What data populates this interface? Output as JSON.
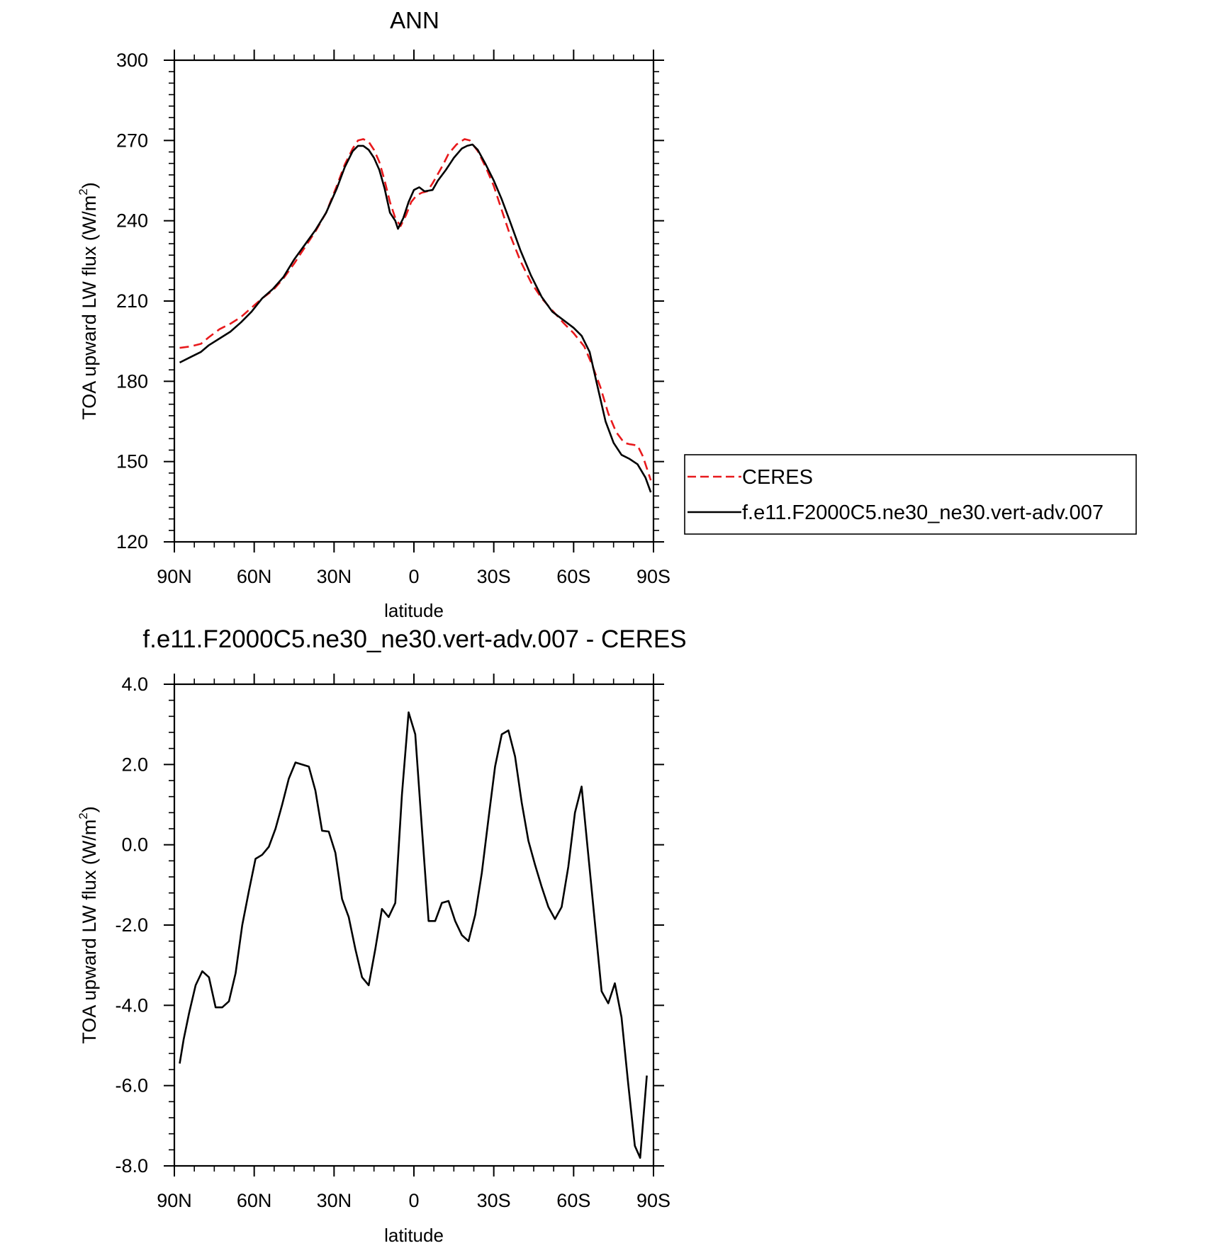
{
  "chart_data": [
    {
      "type": "line",
      "title": "ANN",
      "xlabel": "latitude",
      "ylabel": "TOA upward LW flux (W/m2)",
      "ylabel_main": "TOA upward LW flux (W/m",
      "ylabel_sup": "2",
      "ylabel_close": ")",
      "xlim": [
        90,
        -90
      ],
      "ylim": [
        120,
        300
      ],
      "x_ticks": [
        {
          "value": 90,
          "label": "90N"
        },
        {
          "value": 60,
          "label": "60N"
        },
        {
          "value": 30,
          "label": "30N"
        },
        {
          "value": 0,
          "label": "0"
        },
        {
          "value": -30,
          "label": "30S"
        },
        {
          "value": -60,
          "label": "60S"
        },
        {
          "value": -90,
          "label": "90S"
        }
      ],
      "y_ticks": [
        {
          "value": 120,
          "label": "120"
        },
        {
          "value": 150,
          "label": "150"
        },
        {
          "value": 180,
          "label": "180"
        },
        {
          "value": 210,
          "label": "210"
        },
        {
          "value": 240,
          "label": "240"
        },
        {
          "value": 270,
          "label": "270"
        },
        {
          "value": 300,
          "label": "300"
        }
      ],
      "grid": false,
      "legend": {
        "placement": "right"
      },
      "series": [
        {
          "name": "CERES",
          "color": "#e8191c",
          "dash": "dashed",
          "points": [
            [
              88,
              192.5
            ],
            [
              84,
              193
            ],
            [
              80,
              194
            ],
            [
              77,
              196.5
            ],
            [
              73,
              199.5
            ],
            [
              69,
              201.5
            ],
            [
              65,
              204
            ],
            [
              61,
              207.5
            ],
            [
              57,
              211
            ],
            [
              53,
              214
            ],
            [
              49,
              218.5
            ],
            [
              45,
              224
            ],
            [
              41,
              230
            ],
            [
              37,
              236
            ],
            [
              33,
              243
            ],
            [
              29,
              253
            ],
            [
              26,
              261
            ],
            [
              23,
              267
            ],
            [
              21,
              270
            ],
            [
              19,
              270.5
            ],
            [
              17,
              269.5
            ],
            [
              15,
              266.5
            ],
            [
              13,
              262
            ],
            [
              11,
              255
            ],
            [
              9,
              247
            ],
            [
              7,
              241
            ],
            [
              5,
              238
            ],
            [
              3,
              242
            ],
            [
              1,
              247
            ],
            [
              -1,
              249.5
            ],
            [
              -3,
              250.5
            ],
            [
              -5,
              251
            ],
            [
              -7,
              254
            ],
            [
              -9,
              257.5
            ],
            [
              -11,
              261
            ],
            [
              -13,
              265
            ],
            [
              -16,
              268.5
            ],
            [
              -19,
              270.5
            ],
            [
              -21,
              270
            ],
            [
              -24,
              266
            ],
            [
              -27,
              260
            ],
            [
              -30,
              253
            ],
            [
              -33,
              244
            ],
            [
              -36,
              235
            ],
            [
              -40,
              225
            ],
            [
              -44,
              217
            ],
            [
              -48,
              211
            ],
            [
              -52,
              206.5
            ],
            [
              -56,
              202
            ],
            [
              -60,
              198
            ],
            [
              -64,
              193
            ],
            [
              -67,
              186
            ],
            [
              -70,
              178
            ],
            [
              -73,
              168
            ],
            [
              -76,
              161
            ],
            [
              -79,
              157
            ],
            [
              -81,
              156.5
            ],
            [
              -84,
              156
            ],
            [
              -86,
              152
            ],
            [
              -88,
              146
            ],
            [
              -89,
              143
            ]
          ]
        },
        {
          "name": "f.e11.F2000C5.ne30_ne30.vert-adv.007",
          "color": "#000000",
          "dash": "solid",
          "points": [
            [
              88,
              187
            ],
            [
              84,
              189
            ],
            [
              80,
              191
            ],
            [
              77,
              193.5
            ],
            [
              73,
              196
            ],
            [
              69,
              198.5
            ],
            [
              65,
              202
            ],
            [
              61,
              206
            ],
            [
              57,
              211
            ],
            [
              53,
              214.5
            ],
            [
              49,
              219
            ],
            [
              45,
              225.5
            ],
            [
              41,
              231
            ],
            [
              37,
              236.5
            ],
            [
              33,
              243
            ],
            [
              29,
              252
            ],
            [
              26,
              260
            ],
            [
              23,
              266
            ],
            [
              21,
              268
            ],
            [
              19,
              268
            ],
            [
              17,
              266.5
            ],
            [
              15,
              263.5
            ],
            [
              13,
              259
            ],
            [
              11,
              252
            ],
            [
              9,
              243
            ],
            [
              7,
              240
            ],
            [
              6,
              237
            ],
            [
              4,
              241
            ],
            [
              2,
              247
            ],
            [
              0,
              251.5
            ],
            [
              -2,
              252.5
            ],
            [
              -4,
              251
            ],
            [
              -7,
              251.5
            ],
            [
              -9,
              255
            ],
            [
              -12,
              259
            ],
            [
              -15,
              263.5
            ],
            [
              -18,
              267
            ],
            [
              -20,
              268
            ],
            [
              -22,
              268.5
            ],
            [
              -24,
              266.5
            ],
            [
              -27,
              261
            ],
            [
              -30,
              255
            ],
            [
              -33,
              248
            ],
            [
              -36,
              240
            ],
            [
              -40,
              229
            ],
            [
              -44,
              219.5
            ],
            [
              -48,
              211.5
            ],
            [
              -52,
              206
            ],
            [
              -56,
              203
            ],
            [
              -60,
              200
            ],
            [
              -63,
              197
            ],
            [
              -66,
              191
            ],
            [
              -69,
              178
            ],
            [
              -72,
              165
            ],
            [
              -75,
              157
            ],
            [
              -78,
              152.5
            ],
            [
              -81,
              151
            ],
            [
              -84,
              149
            ],
            [
              -87,
              144
            ],
            [
              -89,
              138.5
            ]
          ]
        }
      ]
    },
    {
      "type": "line",
      "title": "f.e11.F2000C5.ne30_ne30.vert-adv.007 - CERES",
      "xlabel": "latitude",
      "ylabel": "TOA upward LW flux (W/m2)",
      "ylabel_main": "TOA upward LW flux (W/m",
      "ylabel_sup": "2",
      "ylabel_close": ")",
      "xlim": [
        90,
        -90
      ],
      "ylim": [
        -8,
        4
      ],
      "x_ticks": [
        {
          "value": 90,
          "label": "90N"
        },
        {
          "value": 60,
          "label": "60N"
        },
        {
          "value": 30,
          "label": "30N"
        },
        {
          "value": 0,
          "label": "0"
        },
        {
          "value": -30,
          "label": "30S"
        },
        {
          "value": -60,
          "label": "60S"
        },
        {
          "value": -90,
          "label": "90S"
        }
      ],
      "y_ticks": [
        {
          "value": -8,
          "label": "-8.0"
        },
        {
          "value": -6,
          "label": "-6.0"
        },
        {
          "value": -4,
          "label": "-4.0"
        },
        {
          "value": -2,
          "label": "-2.0"
        },
        {
          "value": 0,
          "label": "0.0"
        },
        {
          "value": 2,
          "label": "2.0"
        },
        {
          "value": 4,
          "label": "4.0"
        }
      ],
      "grid": false,
      "series": [
        {
          "color": "#000000",
          "dash": "solid",
          "points": [
            [
              88,
              -5.45
            ],
            [
              86.5,
              -4.85
            ],
            [
              84.5,
              -4.2
            ],
            [
              82,
              -3.5
            ],
            [
              79.5,
              -3.15
            ],
            [
              77,
              -3.3
            ],
            [
              74.5,
              -4.05
            ],
            [
              72,
              -4.05
            ],
            [
              69.5,
              -3.9
            ],
            [
              67,
              -3.2
            ],
            [
              64.5,
              -2.0
            ],
            [
              62,
              -1.15
            ],
            [
              59.5,
              -0.35
            ],
            [
              57,
              -0.25
            ],
            [
              54.5,
              -0.05
            ],
            [
              52,
              0.4
            ],
            [
              49.5,
              1.0
            ],
            [
              47,
              1.65
            ],
            [
              44.5,
              2.05
            ],
            [
              39.5,
              1.95
            ],
            [
              37,
              1.35
            ],
            [
              34.5,
              0.35
            ],
            [
              32,
              0.33
            ],
            [
              29.5,
              -0.2
            ],
            [
              27,
              -1.35
            ],
            [
              24.5,
              -1.8
            ],
            [
              22,
              -2.6
            ],
            [
              19.5,
              -3.3
            ],
            [
              17,
              -3.5
            ],
            [
              14.5,
              -2.6
            ],
            [
              12,
              -1.6
            ],
            [
              9.5,
              -1.8
            ],
            [
              7,
              -1.45
            ],
            [
              4.5,
              1.25
            ],
            [
              2,
              3.3
            ],
            [
              -0.5,
              2.75
            ],
            [
              -3,
              0.4
            ],
            [
              -5.5,
              -1.9
            ],
            [
              -8,
              -1.9
            ],
            [
              -10.5,
              -1.45
            ],
            [
              -13,
              -1.4
            ],
            [
              -15.5,
              -1.9
            ],
            [
              -18,
              -2.25
            ],
            [
              -20.5,
              -2.4
            ],
            [
              -23,
              -1.75
            ],
            [
              -25.5,
              -0.7
            ],
            [
              -28,
              0.65
            ],
            [
              -30.5,
              1.95
            ],
            [
              -33,
              2.75
            ],
            [
              -35.5,
              2.85
            ],
            [
              -38,
              2.2
            ],
            [
              -40.5,
              1.05
            ],
            [
              -43,
              0.1
            ],
            [
              -45.5,
              -0.5
            ],
            [
              -48,
              -1.05
            ],
            [
              -50.5,
              -1.55
            ],
            [
              -53,
              -1.85
            ],
            [
              -55.5,
              -1.55
            ],
            [
              -58,
              -0.55
            ],
            [
              -60.5,
              0.8
            ],
            [
              -63,
              1.45
            ],
            [
              -65.5,
              -0.25
            ],
            [
              -68,
              -1.95
            ],
            [
              -70.5,
              -3.65
            ],
            [
              -73,
              -3.95
            ],
            [
              -75.5,
              -3.45
            ],
            [
              -78,
              -4.3
            ],
            [
              -80.5,
              -5.95
            ],
            [
              -83,
              -7.5
            ],
            [
              -85,
              -7.8
            ],
            [
              -87.5,
              -5.75
            ]
          ]
        }
      ]
    }
  ]
}
